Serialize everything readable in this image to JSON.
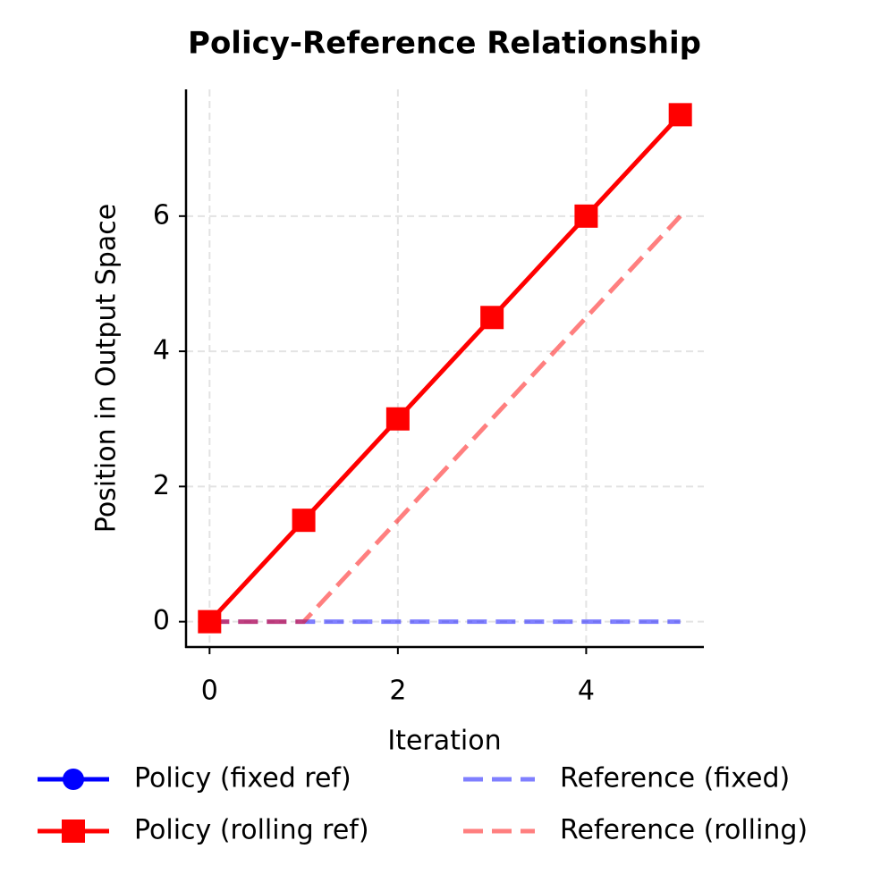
{
  "chart_data": {
    "type": "line",
    "title": "Policy-Reference Relationship",
    "x_label": "Iteration",
    "y_label": "Position in Output Space",
    "x": [
      0,
      1,
      2,
      3,
      4,
      5
    ],
    "series": [
      {
        "name": "Policy (fixed ref)",
        "color": "#0000ff",
        "linestyle": "solid",
        "marker": "circle",
        "alpha": 1,
        "values": [
          null,
          null,
          null,
          null,
          null,
          null
        ]
      },
      {
        "name": "Reference (fixed)",
        "color": "#0000ff",
        "linestyle": "dashed",
        "marker": "none",
        "alpha": 0.5,
        "values": [
          0,
          0,
          0,
          0,
          0,
          0
        ]
      },
      {
        "name": "Policy (rolling ref)",
        "color": "#ff0000",
        "linestyle": "solid",
        "marker": "square",
        "alpha": 1,
        "values": [
          0,
          1.5,
          3,
          4.5,
          6,
          7.5
        ]
      },
      {
        "name": "Reference (rolling)",
        "color": "#ff0000",
        "linestyle": "dashed",
        "marker": "none",
        "alpha": 0.5,
        "values": [
          0,
          0,
          1.5,
          3,
          4.5,
          6
        ]
      }
    ],
    "xlim": [
      -0.25,
      5.25
    ],
    "ylim": [
      -0.375,
      7.875
    ],
    "xticks": [
      0,
      2,
      4
    ],
    "yticks": [
      0,
      2,
      4,
      6
    ],
    "grid": true
  }
}
